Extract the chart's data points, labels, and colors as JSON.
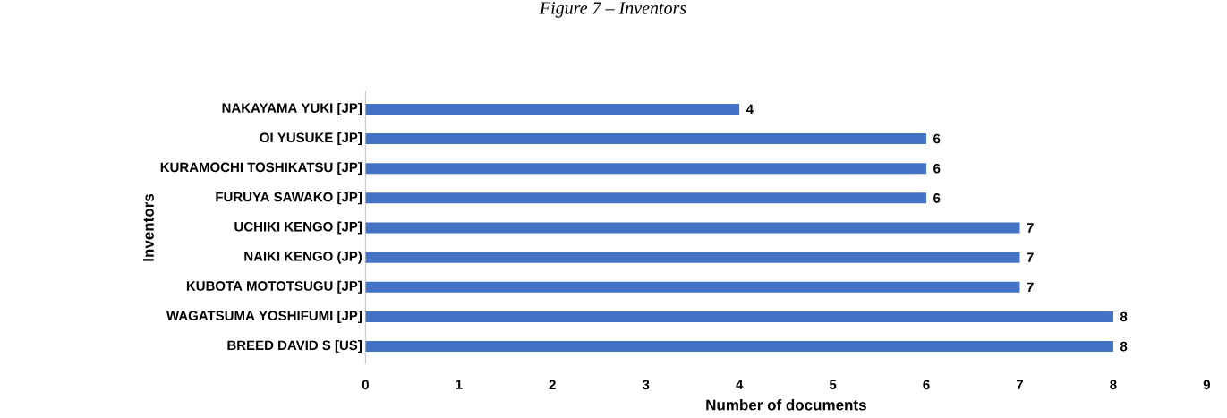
{
  "chart_data": {
    "type": "bar",
    "orientation": "horizontal",
    "title": "Figure 7 – Inventors",
    "xlabel": "Number of documents",
    "ylabel": "Inventors",
    "categories": [
      "NAKAYAMA YUKI [JP]",
      "OI YUSUKE [JP]",
      "KURAMOCHI TOSHIKATSU [JP]",
      "FURUYA SAWAKO [JP]",
      "UCHIKI KENGO [JP]",
      "NAIKI KENGO (JP)",
      "KUBOTA MOTOTSUGU [JP]",
      "WAGATSUMA YOSHIFUMI [JP]",
      "BREED DAVID S [US]"
    ],
    "values": [
      4,
      6,
      6,
      6,
      7,
      7,
      7,
      8,
      8
    ],
    "color": "#4472c4",
    "xlim": [
      0,
      9
    ],
    "xticks": [
      0,
      1,
      2,
      3,
      4,
      5,
      6,
      7,
      8,
      9
    ],
    "data_labels": true,
    "grid": false
  }
}
